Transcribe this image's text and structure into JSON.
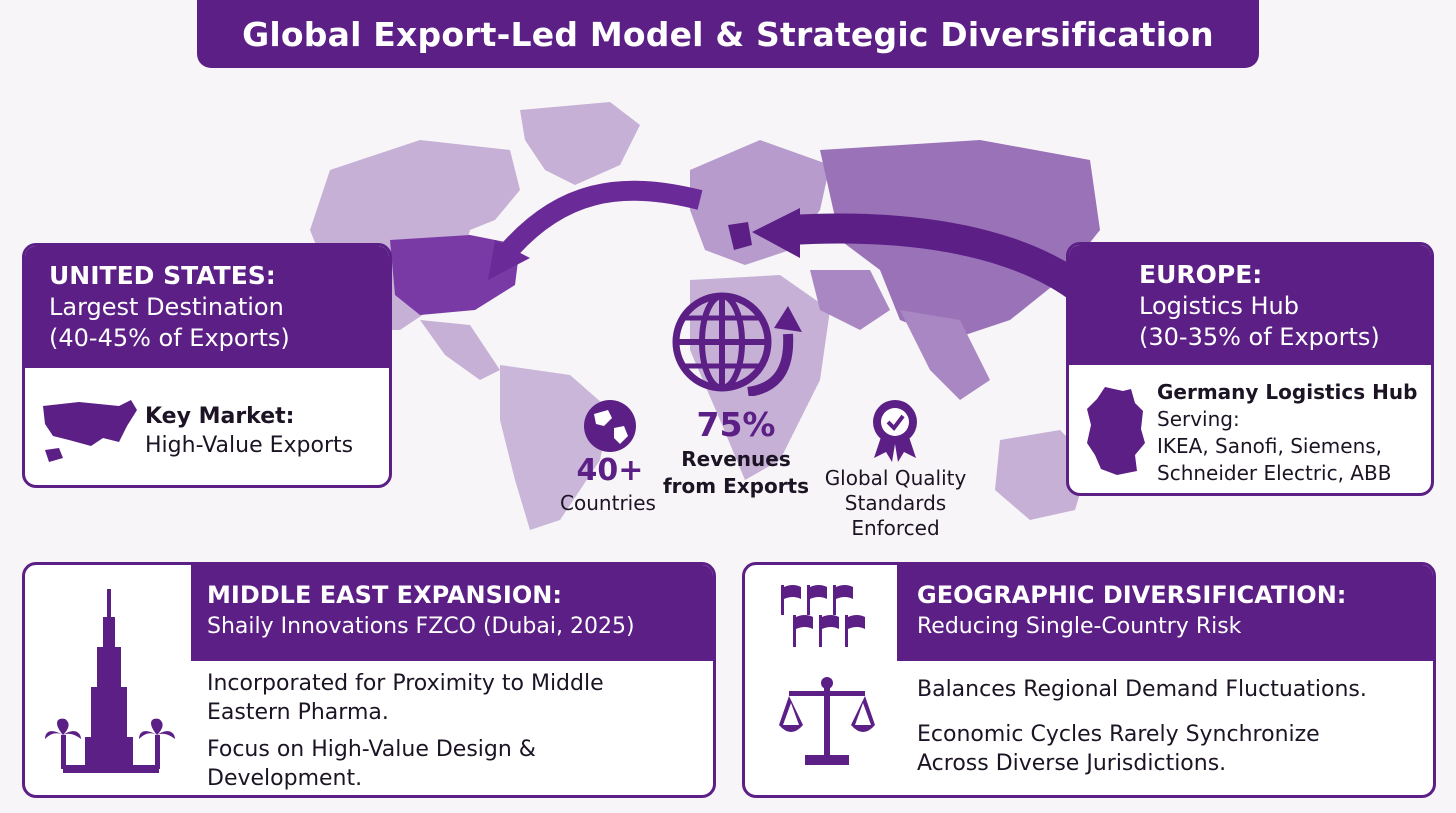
{
  "title": "Global Export-Led Model & Strategic Diversification",
  "us_card": {
    "heading": "UNITED STATES:",
    "subheading": "Largest Destination",
    "share": "(40-45% of Exports)",
    "detail_title": "Key Market:",
    "detail_text": "High-Value Exports"
  },
  "europe_card": {
    "heading": "EUROPE:",
    "subheading": "Logistics Hub",
    "share": "(30-35% of Exports)",
    "detail_title": "Germany Logistics Hub",
    "detail_lines": [
      "Serving:",
      "IKEA, Sanofi, Siemens,",
      "Schneider Electric, ABB"
    ]
  },
  "center_stats": {
    "revenue_value": "75%",
    "revenue_label_1": "Revenues",
    "revenue_label_2": "from Exports",
    "countries_value": "40+",
    "countries_label": "Countries",
    "quality_lines": [
      "Global Quality",
      "Standards",
      "Enforced"
    ]
  },
  "middle_east_card": {
    "heading": "MIDDLE EAST EXPANSION:",
    "subheading": "Shaily Innovations FZCO (Dubai, 2025)",
    "point_1": [
      "Incorporated for Proximity to Middle",
      "Eastern Pharma."
    ],
    "point_2": [
      "Focus on High-Value Design &",
      "Development."
    ]
  },
  "diversification_card": {
    "heading": "GEOGRAPHIC DIVERSIFICATION:",
    "subheading": "Reducing Single-Country Risk",
    "point_1": "Balances Regional Demand Fluctuations.",
    "point_2": [
      "Economic Cycles Rarely Synchronize",
      "Across Diverse Jurisdictions."
    ]
  },
  "colors": {
    "primary": "#5b1f86",
    "map_light": "#c6b0d6",
    "map_mid": "#9a72b8",
    "background": "#f7f5f8"
  },
  "icons": [
    "usa-map-icon",
    "germany-map-icon",
    "globe-arrow-icon",
    "globe-icon",
    "quality-badge-icon",
    "burj-khalifa-icon",
    "palm-tree-icon",
    "flags-icon",
    "balance-scale-icon"
  ]
}
